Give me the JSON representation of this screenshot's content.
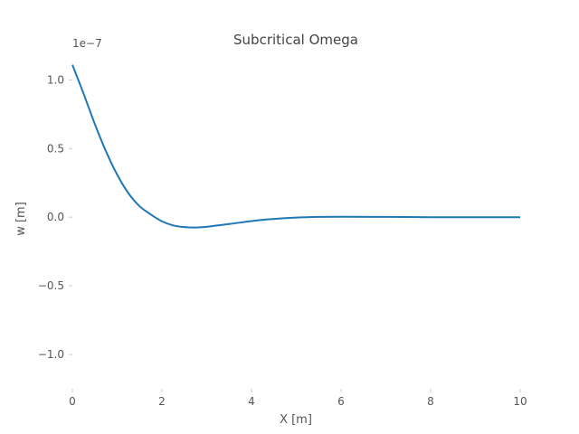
{
  "chart_data": {
    "type": "line",
    "title": "Subcritical Omega",
    "xlabel": "X [m]",
    "ylabel": "w [m]",
    "offset_text": "1e−7",
    "xlim": [
      0,
      10
    ],
    "ylim": [
      -1.25,
      1.2
    ],
    "xticks": [
      0,
      2,
      4,
      6,
      8,
      10
    ],
    "xtick_labels": [
      "0",
      "2",
      "4",
      "6",
      "8",
      "10"
    ],
    "yticks": [
      1.0,
      0.5,
      0.0,
      -0.5,
      -1.0
    ],
    "ytick_labels": [
      "1.0",
      "0.5",
      "0.0",
      "−0.5",
      "−1.0"
    ],
    "grid": false,
    "series": [
      {
        "color": "#1f77b4",
        "x": [
          0,
          0.25,
          0.5,
          0.75,
          1.0,
          1.25,
          1.5,
          1.75,
          2.0,
          2.25,
          2.5,
          2.75,
          3.0,
          3.5,
          4.0,
          4.5,
          5.0,
          5.5,
          6.0,
          7.0,
          8.0,
          9.0,
          10.0
        ],
        "y": [
          1.11,
          0.9,
          0.68,
          0.48,
          0.31,
          0.175,
          0.08,
          0.02,
          -0.03,
          -0.06,
          -0.072,
          -0.075,
          -0.07,
          -0.05,
          -0.028,
          -0.013,
          -0.003,
          0.002,
          0.003,
          0.002,
          0.0,
          0.0,
          0.0
        ]
      }
    ]
  }
}
